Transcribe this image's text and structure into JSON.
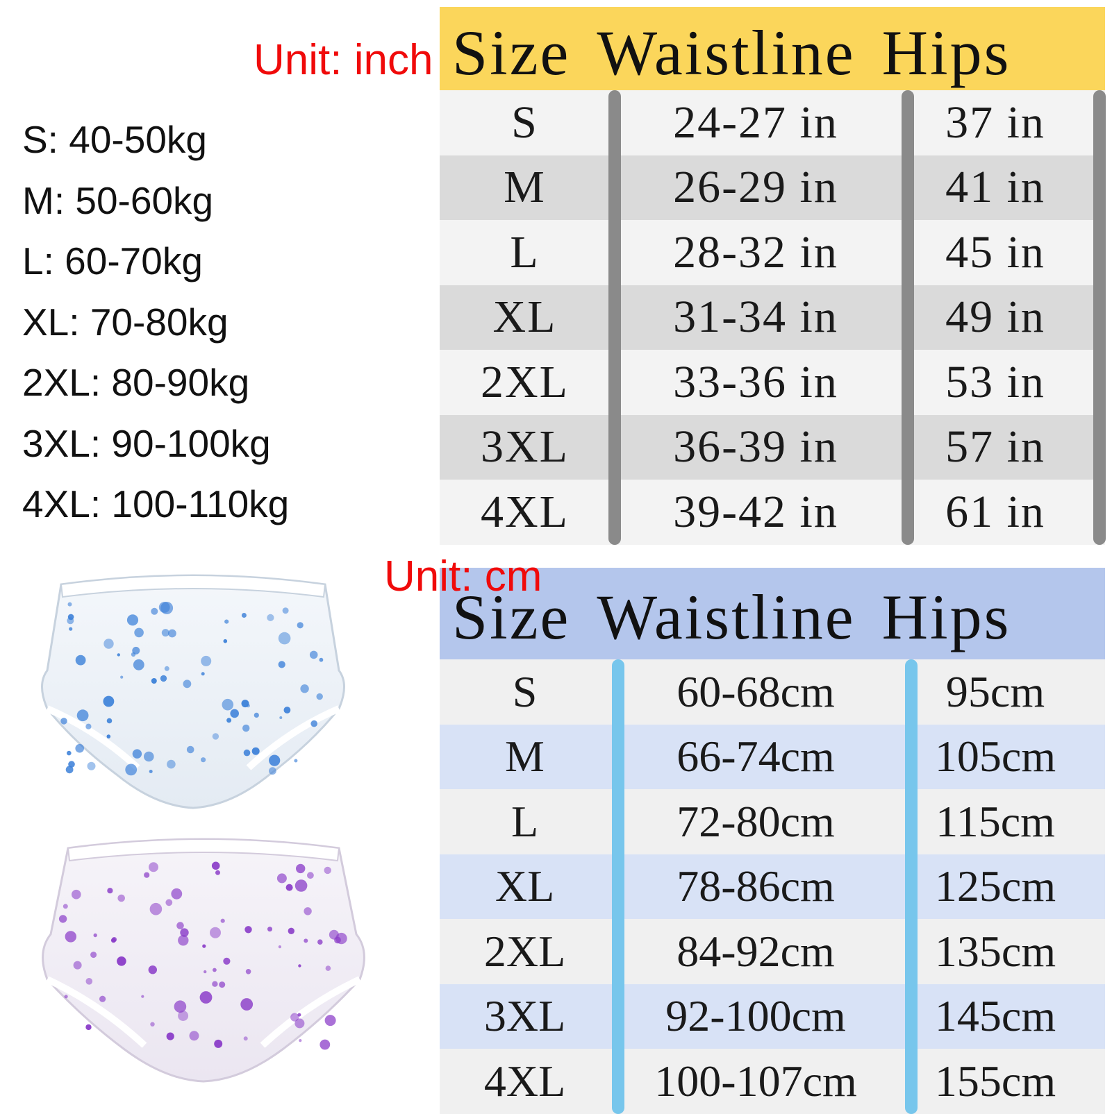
{
  "unit_labels": {
    "inch": "Unit: inch",
    "cm": "Unit: cm"
  },
  "weights": [
    "S: 40-50kg",
    "M: 50-60kg",
    "L: 60-70kg",
    "XL: 70-80kg",
    "2XL: 80-90kg",
    "3XL: 90-100kg",
    "4XL: 100-110kg"
  ],
  "inch_table": {
    "header": {
      "size": "Size",
      "waistline": "Waistline",
      "hips": "Hips"
    },
    "rows": [
      {
        "size": "S",
        "waistline": "24-27 in",
        "hips": "37 in"
      },
      {
        "size": "M",
        "waistline": "26-29 in",
        "hips": "41 in"
      },
      {
        "size": "L",
        "waistline": "28-32 in",
        "hips": "45 in"
      },
      {
        "size": "XL",
        "waistline": "31-34 in",
        "hips": "49 in"
      },
      {
        "size": "2XL",
        "waistline": "33-36 in",
        "hips": "53 in"
      },
      {
        "size": "3XL",
        "waistline": "36-39 in",
        "hips": "57 in"
      },
      {
        "size": "4XL",
        "waistline": "39-42 in",
        "hips": "61 in"
      }
    ]
  },
  "cm_table": {
    "header": {
      "size": "Size",
      "waistline": "Waistline",
      "hips": "Hips"
    },
    "rows": [
      {
        "size": "S",
        "waistline": "60-68cm",
        "hips": "95cm"
      },
      {
        "size": "M",
        "waistline": "66-74cm",
        "hips": "105cm"
      },
      {
        "size": "L",
        "waistline": "72-80cm",
        "hips": "115cm"
      },
      {
        "size": "XL",
        "waistline": "78-86cm",
        "hips": "125cm"
      },
      {
        "size": "2XL",
        "waistline": "84-92cm",
        "hips": "135cm"
      },
      {
        "size": "3XL",
        "waistline": "92-100cm",
        "hips": "145cm"
      },
      {
        "size": "4XL",
        "waistline": "100-107cm",
        "hips": "155cm"
      }
    ]
  },
  "colors": {
    "unit_label": "#f00a0a",
    "inch_header_bg": "#fbd65b",
    "cm_header_bg": "#b4c6ec",
    "inch_divider": "#8a8a8a",
    "cm_divider": "#77c6ec",
    "blue_dots": "#3a7fd8",
    "purple_dots": "#8a3cc8"
  },
  "photos": [
    {
      "name": "clear-pants-blue-dots",
      "dot_color": "#3a7fd8"
    },
    {
      "name": "clear-pants-purple-dots",
      "dot_color": "#8a3cc8"
    }
  ]
}
